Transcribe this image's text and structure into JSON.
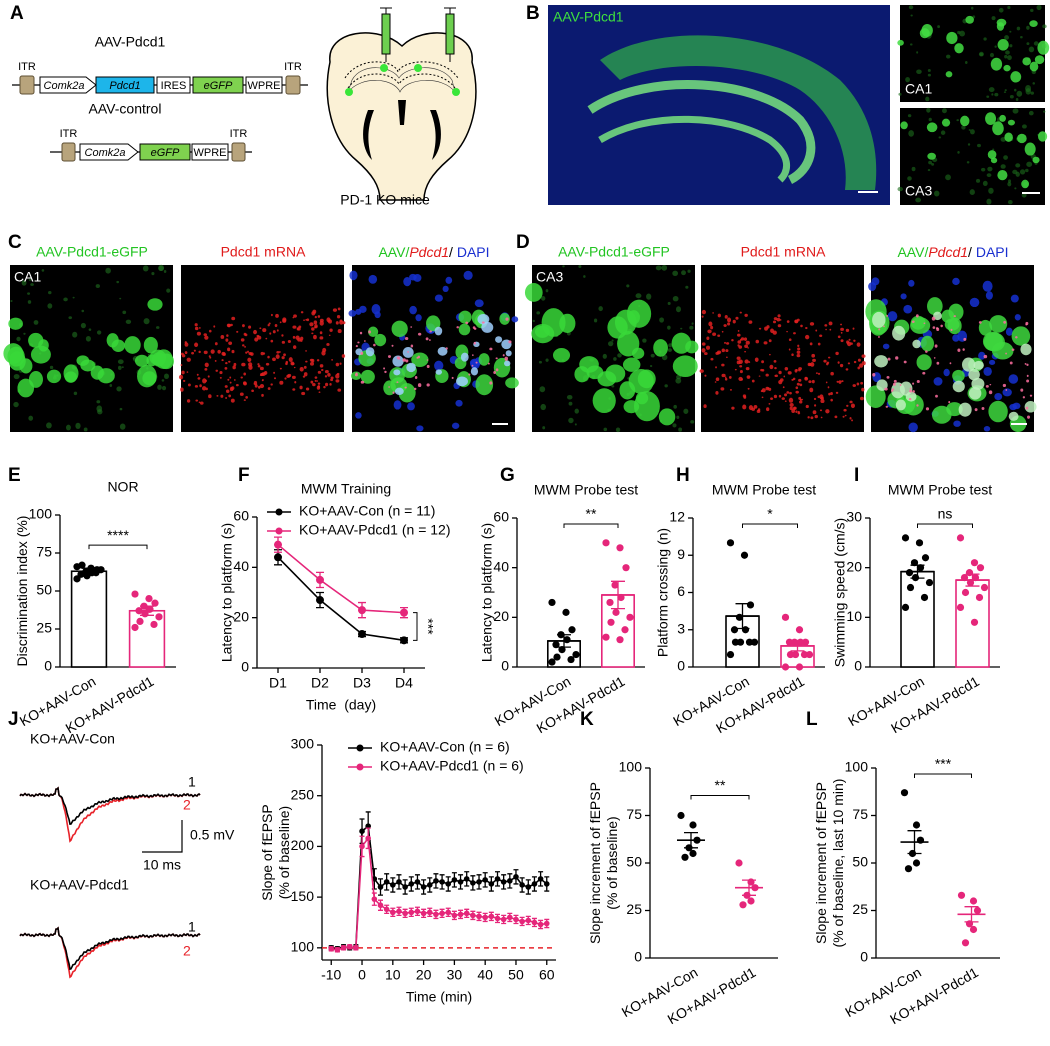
{
  "panel_labels": [
    "A",
    "B",
    "C",
    "D",
    "E",
    "F",
    "G",
    "H",
    "I",
    "J",
    "K",
    "L"
  ],
  "panel_a": {
    "construct_1": {
      "name": "AAV-Pdcd1",
      "elements": [
        "ITR",
        "Comk2a",
        "Pdcd1",
        "IRES",
        "eGFP",
        "WPRE",
        "ITR"
      ]
    },
    "construct_2": {
      "name": "AAV-control",
      "elements": [
        "ITR",
        "Comk2a",
        "eGFP",
        "WPRE",
        "ITR"
      ]
    },
    "brain_caption": "PD-1 KO mice"
  },
  "panel_b": {
    "main_label": "AAV-Pdcd1",
    "inset_labels": [
      "CA1",
      "CA3"
    ]
  },
  "panel_c": {
    "region": "CA1",
    "channel_titles": [
      "AAV-Pdcd1-eGFP",
      "Pdcd1 mRNA",
      [
        "AAV/",
        "Pdcd1",
        "/ ",
        "DAPI"
      ]
    ]
  },
  "panel_d": {
    "region": "CA3",
    "channel_titles": [
      "AAV-Pdcd1-eGFP",
      "Pdcd1 mRNA",
      [
        "AAV/",
        "Pdcd1",
        "/ ",
        "DAPI"
      ]
    ]
  },
  "panel_j": {
    "traces": [
      {
        "group": "KO+AAV-Con",
        "labels": [
          "1",
          "2"
        ]
      },
      {
        "group": "KO+AAV-Pdcd1",
        "labels": [
          "1",
          "2"
        ]
      }
    ],
    "scale_bar": {
      "y": "0.5 mV",
      "x": "10 ms"
    }
  },
  "chart_data": [
    {
      "type": "bar",
      "title": "NOR",
      "ylabel": "Discrimination index (%)",
      "categories": [
        "KO+AAV-Con",
        "KO+AAV-Pdcd1"
      ],
      "colors": [
        "#000000",
        "#e5267a"
      ],
      "values": [
        63,
        37
      ],
      "errors": [
        2,
        3
      ],
      "points": [
        [
          66,
          65,
          64,
          63,
          62,
          61,
          60,
          64,
          67,
          62,
          58
        ],
        [
          48,
          45,
          42,
          40,
          38,
          37,
          35,
          33,
          30,
          28,
          26,
          38
        ]
      ],
      "ylim": [
        0,
        100
      ],
      "yticks": [
        0,
        25,
        50,
        75,
        100
      ],
      "significance": "****"
    },
    {
      "type": "line",
      "title": "MWM Training",
      "ylabel": "Latency to platform (s)",
      "xlabel": "Time  (day)",
      "categories": [
        "D1",
        "D2",
        "D3",
        "D4"
      ],
      "series": [
        {
          "name": "KO+AAV-Con (n = 11)",
          "color": "#000000",
          "values": [
            44,
            27,
            13.5,
            11
          ],
          "errors": [
            3,
            3,
            1,
            1
          ]
        },
        {
          "name": "KO+AAV-Pdcd1 (n = 12)",
          "color": "#e5267a",
          "values": [
            49,
            35,
            23,
            22
          ],
          "errors": [
            3,
            3,
            3,
            2
          ]
        }
      ],
      "ylim": [
        0,
        60
      ],
      "yticks": [
        0,
        20,
        40,
        60
      ],
      "significance": "***"
    },
    {
      "type": "bar",
      "title": "MWM Probe test",
      "ylabel": "Latency to platform (s)",
      "categories": [
        "KO+AAV-Con",
        "KO+AAV-Pdcd1"
      ],
      "colors": [
        "#000000",
        "#e5267a"
      ],
      "values": [
        10.5,
        29
      ],
      "errors": [
        2.5,
        5.5
      ],
      "points": [
        [
          26,
          22,
          15,
          13,
          11,
          9,
          7,
          5,
          4,
          3,
          2
        ],
        [
          50,
          48,
          40,
          33,
          28,
          26,
          22,
          20,
          18,
          15,
          12,
          11
        ]
      ],
      "ylim": [
        0,
        60
      ],
      "yticks": [
        0,
        20,
        40,
        60
      ],
      "significance": "**"
    },
    {
      "type": "bar",
      "title": "MWM Probe test",
      "ylabel": "Platform crossing (n)",
      "categories": [
        "KO+AAV-Con",
        "KO+AAV-Pdcd1"
      ],
      "colors": [
        "#000000",
        "#e5267a"
      ],
      "values": [
        4.1,
        1.7
      ],
      "errors": [
        1.0,
        0.4
      ],
      "points": [
        [
          10,
          9,
          5,
          4,
          3,
          3,
          2,
          2,
          2,
          2,
          1
        ],
        [
          4,
          3,
          2,
          2,
          2,
          2,
          1,
          1,
          1,
          1,
          0,
          0
        ]
      ],
      "ylim": [
        0,
        12
      ],
      "yticks": [
        0,
        3,
        6,
        9,
        12
      ],
      "significance": "*"
    },
    {
      "type": "bar",
      "title": "MWM Probe test",
      "ylabel": "Swimming speed (cm/s)",
      "categories": [
        "KO+AAV-Con",
        "KO+AAV-Pdcd1"
      ],
      "colors": [
        "#000000",
        "#e5267a"
      ],
      "values": [
        19.2,
        17.5
      ],
      "errors": [
        1.3,
        1.2
      ],
      "points": [
        [
          26,
          25,
          22,
          21,
          20,
          19,
          18,
          17,
          16,
          14,
          12
        ],
        [
          26,
          21,
          20,
          19,
          18,
          18,
          17,
          16,
          15,
          14,
          12,
          9
        ]
      ],
      "ylim": [
        0,
        30
      ],
      "yticks": [
        0,
        10,
        20,
        30
      ],
      "significance": "ns"
    },
    {
      "type": "line",
      "ylabel": [
        "Slope of fEPSP",
        "(% of baseline)"
      ],
      "xlabel": "Time (min)",
      "x": [
        -10,
        -8,
        -6,
        -4,
        -2,
        0,
        2,
        4,
        6,
        8,
        10,
        12,
        14,
        16,
        18,
        20,
        22,
        24,
        26,
        28,
        30,
        32,
        34,
        36,
        38,
        40,
        42,
        44,
        46,
        48,
        50,
        52,
        54,
        56,
        58,
        60
      ],
      "series": [
        {
          "name": "KO+AAV-Con (n = 6)",
          "color": "#000000",
          "values": [
            100,
            99,
            101,
            100,
            101,
            215,
            220,
            168,
            160,
            165,
            162,
            165,
            160,
            163,
            165,
            160,
            162,
            166,
            165,
            163,
            167,
            165,
            168,
            164,
            165,
            167,
            163,
            168,
            165,
            166,
            170,
            162,
            160,
            163,
            168,
            163
          ],
          "errors": [
            2,
            2,
            2,
            2,
            2,
            12,
            14,
            10,
            8,
            8,
            7,
            7,
            7,
            7,
            7,
            7,
            7,
            7,
            7,
            7,
            7,
            7,
            7,
            7,
            7,
            7,
            7,
            7,
            7,
            7,
            7,
            7,
            7,
            7,
            7,
            7
          ]
        },
        {
          "name": "KO+AAV-Pdcd1 (n = 6)",
          "color": "#e5267a",
          "values": [
            99,
            98,
            100,
            101,
            100,
            200,
            208,
            148,
            142,
            138,
            135,
            136,
            134,
            135,
            136,
            134,
            135,
            133,
            134,
            135,
            132,
            133,
            134,
            132,
            131,
            130,
            131,
            129,
            128,
            130,
            128,
            126,
            127,
            125,
            123,
            124
          ],
          "errors": [
            2,
            2,
            2,
            2,
            2,
            10,
            10,
            6,
            5,
            4,
            4,
            4,
            4,
            4,
            4,
            4,
            4,
            4,
            4,
            4,
            4,
            4,
            4,
            4,
            4,
            4,
            4,
            4,
            4,
            4,
            4,
            4,
            4,
            4,
            4,
            4
          ]
        }
      ],
      "xlim": [
        -13,
        63
      ],
      "xticks": [
        -10,
        0,
        10,
        20,
        30,
        40,
        50,
        60
      ],
      "ylim": [
        88,
        300
      ],
      "yticks": [
        100,
        150,
        200,
        250,
        300
      ],
      "ref_line": 100,
      "ref_color": "#e8232a"
    },
    {
      "type": "dot",
      "ylabel": [
        "Slope increment of fEPSP",
        "(% of baseline)"
      ],
      "categories": [
        "KO+AAV-Con",
        "KO+AAV-Pdcd1"
      ],
      "colors": [
        "#000000",
        "#e5267a"
      ],
      "values": [
        62,
        37
      ],
      "errors": [
        4,
        4
      ],
      "points": [
        [
          75,
          70,
          62,
          58,
          55,
          53
        ],
        [
          50,
          40,
          37,
          33,
          30,
          28
        ]
      ],
      "ylim": [
        0,
        100
      ],
      "yticks": [
        0,
        25,
        50,
        75,
        100
      ],
      "significance": "**"
    },
    {
      "type": "dot",
      "ylabel": [
        "Slope increment of fEPSP",
        "(% of baseline, last 10 min)"
      ],
      "categories": [
        "KO+AAV-Con",
        "KO+AAV-Pdcd1"
      ],
      "colors": [
        "#000000",
        "#e5267a"
      ],
      "values": [
        61,
        23
      ],
      "errors": [
        6,
        4
      ],
      "points": [
        [
          87,
          70,
          62,
          55,
          50,
          47
        ],
        [
          33,
          30,
          25,
          18,
          15,
          8
        ]
      ],
      "ylim": [
        0,
        100
      ],
      "yticks": [
        0,
        25,
        50,
        75,
        100
      ],
      "significance": "***"
    }
  ]
}
